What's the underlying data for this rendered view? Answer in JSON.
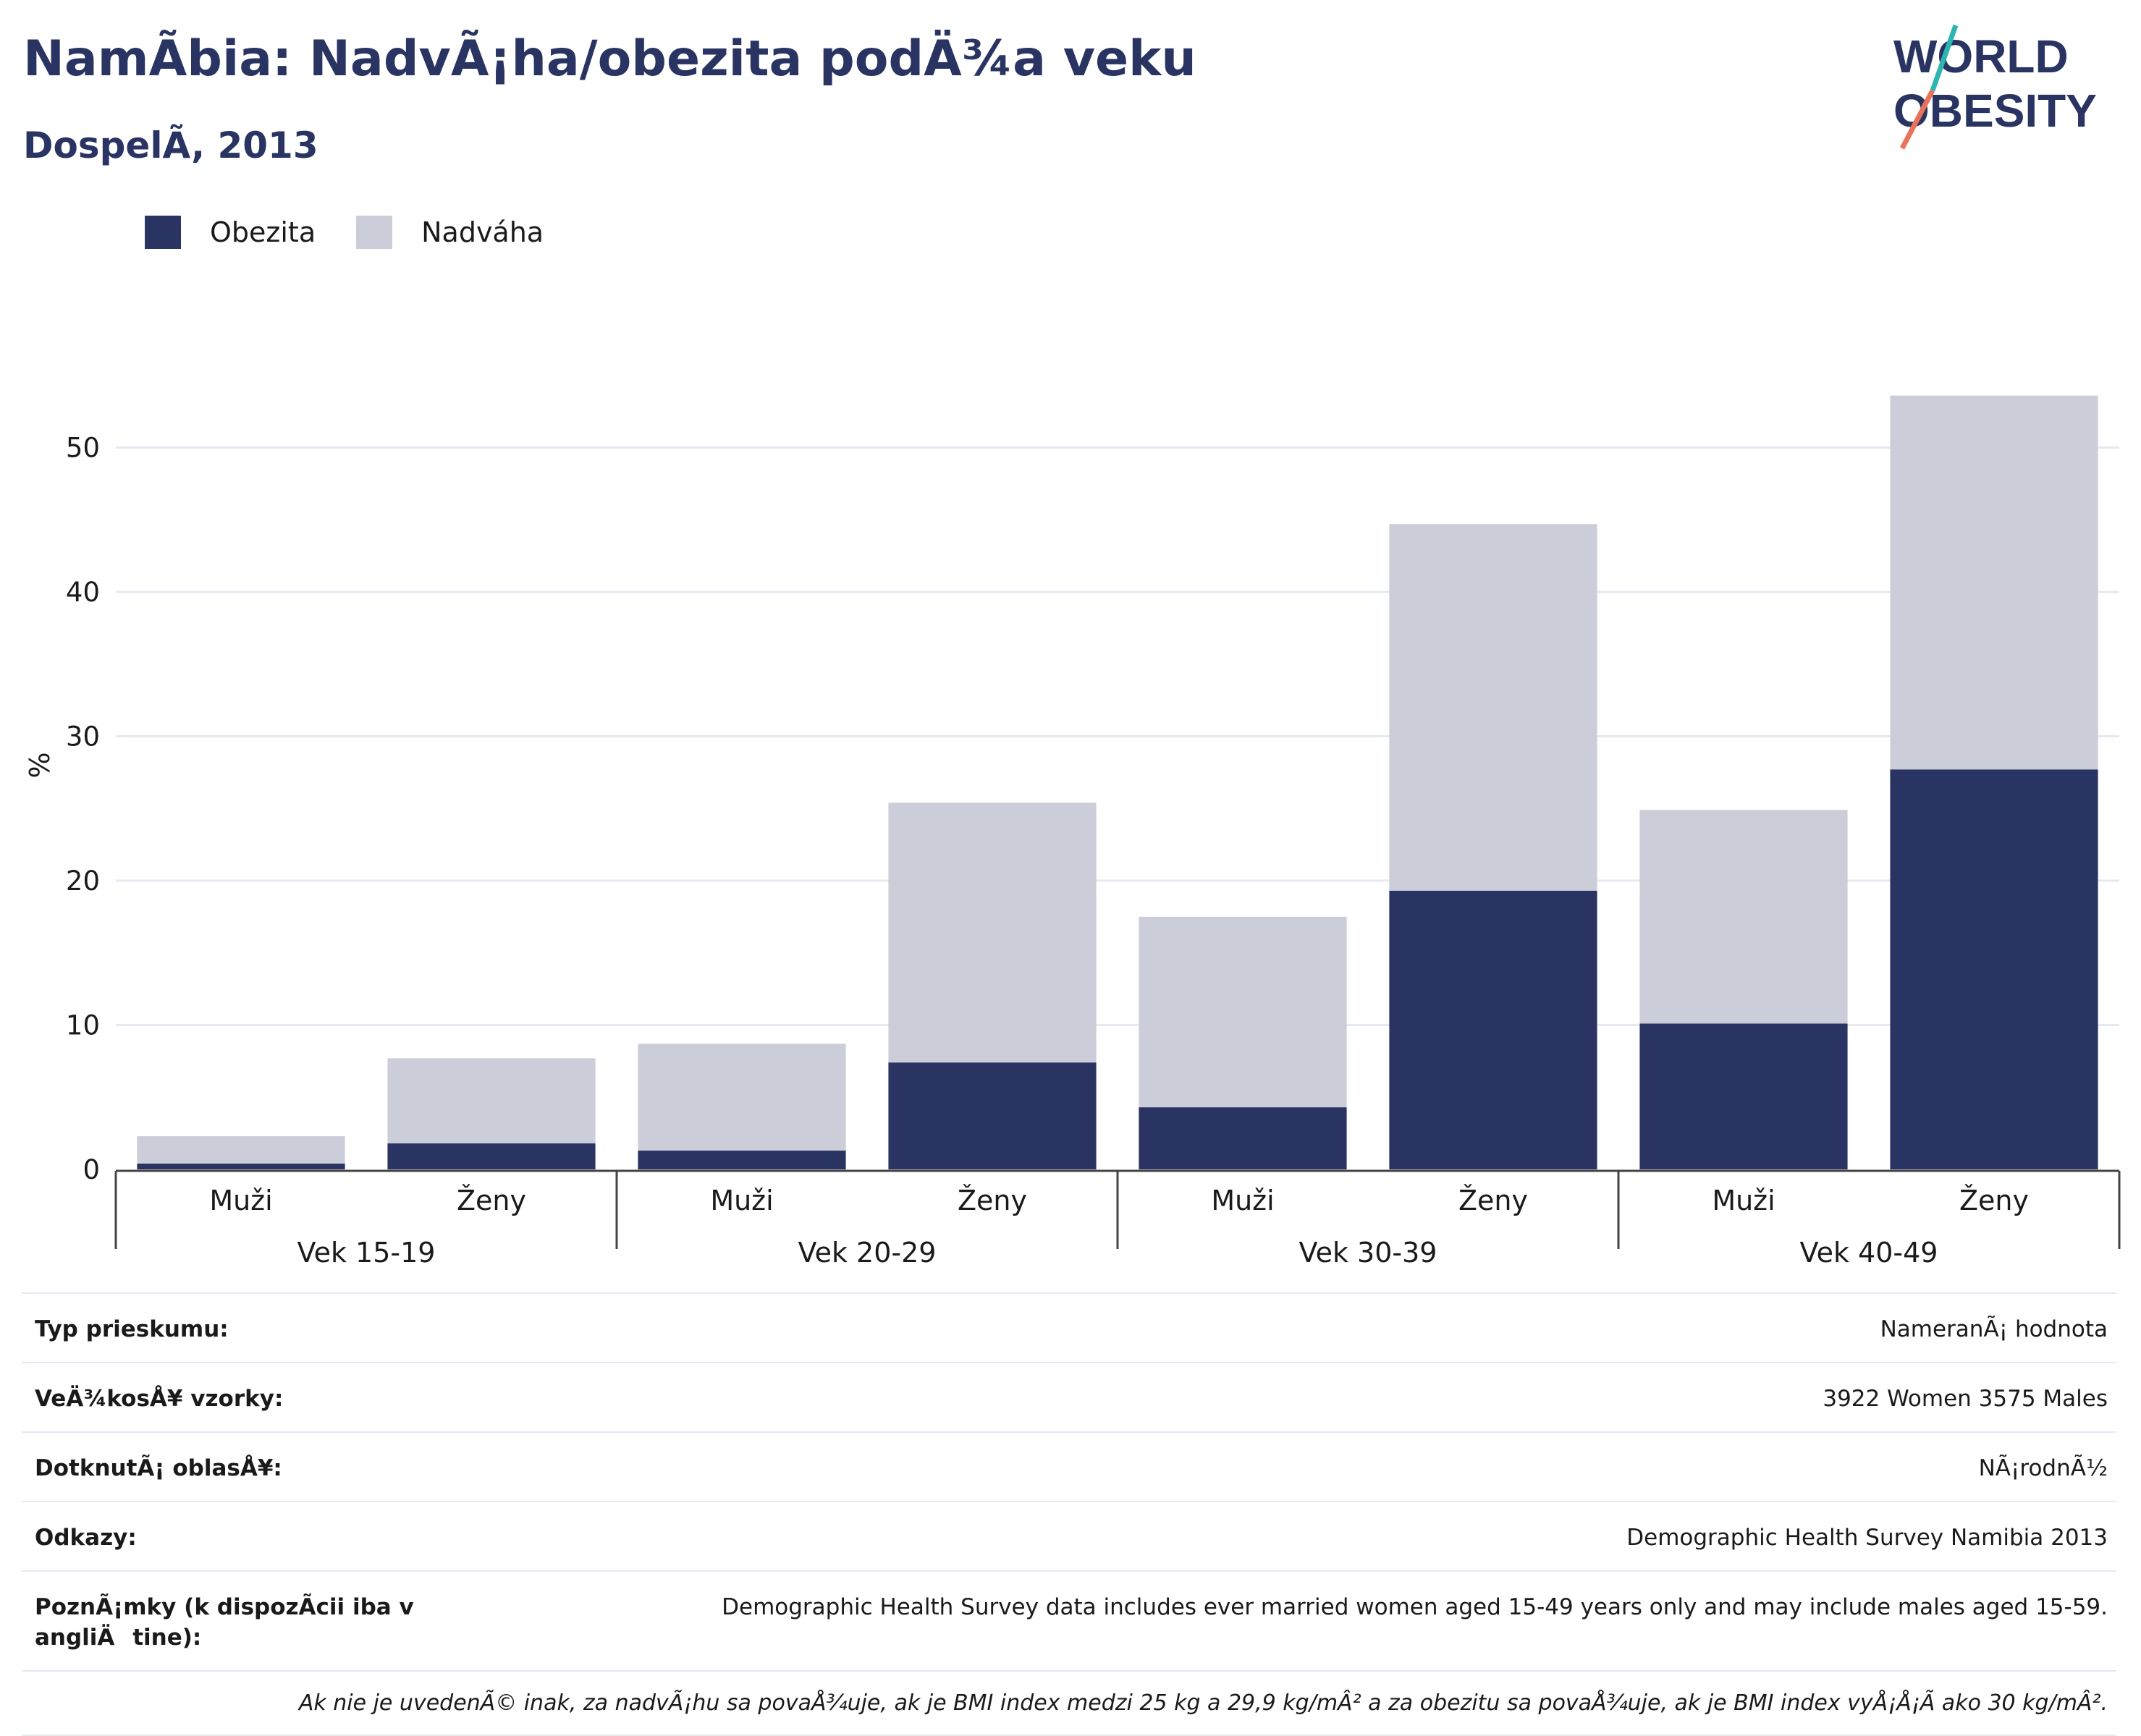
{
  "header": {
    "title": "NamÃbia: NadvÃ¡ha/obezita podÄ¾a veku",
    "subtitle": "DospelÃ, 2013"
  },
  "logo": {
    "line1": "WORLD",
    "line2": "OBESITY"
  },
  "legend": [
    {
      "label": "Obezita",
      "color": "#293462"
    },
    {
      "label": "Nadváha",
      "color": "#cbcdd8"
    }
  ],
  "colors": {
    "obesity": "#293462",
    "overweight": "#cbcdd8",
    "grid": "#e6e9f2",
    "axis": "#444444"
  },
  "chart_data": {
    "type": "bar",
    "stacked": true,
    "ylabel": "%",
    "ylim": [
      0,
      56
    ],
    "yticks": [
      0,
      10,
      20,
      30,
      40,
      50
    ],
    "grid": true,
    "legend_position": "top-left",
    "groups": [
      "Vek 15-19",
      "Vek 20-29",
      "Vek 30-39",
      "Vek 40-49"
    ],
    "categories": [
      "Muži",
      "Ženy"
    ],
    "series": [
      {
        "name": "Obezita",
        "values": [
          [
            0.4,
            1.8
          ],
          [
            1.3,
            7.4
          ],
          [
            4.3,
            19.3
          ],
          [
            10.1,
            27.7
          ]
        ]
      },
      {
        "name": "Nadváha",
        "values": [
          [
            1.9,
            5.9
          ],
          [
            7.4,
            18.0
          ],
          [
            13.2,
            25.4
          ],
          [
            14.8,
            25.9
          ]
        ]
      }
    ]
  },
  "info": {
    "rows": [
      {
        "label": "Typ prieskumu:",
        "value": "NameranÃ¡ hodnota"
      },
      {
        "label": "VeÄ¾kosÅ¥ vzorky:",
        "value": "3922 Women 3575 Males"
      },
      {
        "label": "DotknutÃ¡ oblasÅ¥:",
        "value": "NÃ¡rodnÃ½"
      },
      {
        "label": "Odkazy:",
        "value": "Demographic Health Survey Namibia 2013"
      },
      {
        "label": "PoznÃ¡mky (k dispozÃcii iba v angliÄtine):",
        "value": "Demographic Health Survey data includes ever married women aged 15-49 years only and may include males aged 15-59."
      }
    ],
    "footnote": "Ak nie je uvedenÃ© inak, za nadvÃ¡hu sa povaÅ¾uje, ak je BMI index medzi 25 kg a 29,9 kg/mÂ² a za obezitu sa povaÅ¾uje, ak je BMI index vyÅ¡Å¡Ã ako 30 kg/mÂ²."
  }
}
